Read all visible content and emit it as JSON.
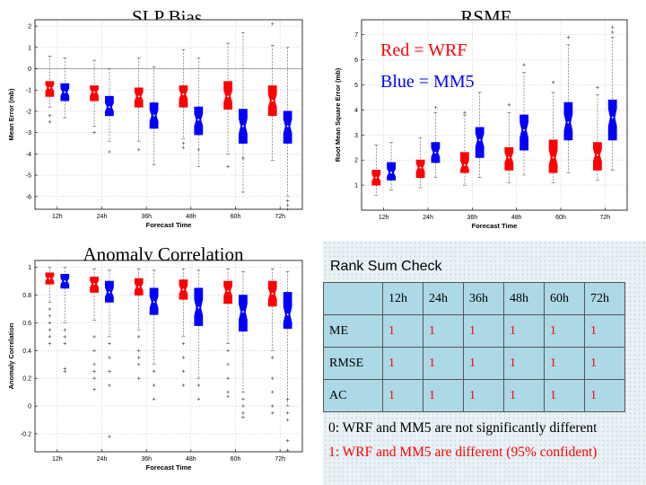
{
  "colors": {
    "wrf": "#ff0000",
    "mm5": "#0000ff",
    "median_dot": "#ffffff"
  },
  "legend": {
    "wrf": "Red = WRF",
    "mm5": "Blue = MM5"
  },
  "chart_data": [
    {
      "type": "box",
      "title": "SLP Bias",
      "xlabel": "Forecast Time",
      "ylabel": "Mean Error (mb)",
      "ylim": [
        -6.6,
        2.3
      ],
      "yticks": [
        2,
        1,
        0,
        -1,
        -2,
        -3,
        -4,
        -5,
        -6
      ],
      "zero_line": true,
      "grid": "dashed",
      "categories": [
        "12h",
        "24h",
        "36h",
        "48h",
        "60h",
        "72h"
      ],
      "series": [
        {
          "name": "WRF",
          "boxes": [
            {
              "min": -1.8,
              "q1": -1.3,
              "median": -0.9,
              "q3": -0.6,
              "max": 0.6,
              "outliers": [
                -2.2,
                -2.5
              ]
            },
            {
              "min": -2.7,
              "q1": -1.5,
              "median": -1.1,
              "q3": -0.8,
              "max": 0.4,
              "outliers": [
                -3.0
              ]
            },
            {
              "min": -3.4,
              "q1": -1.8,
              "median": -1.3,
              "q3": -0.9,
              "max": 0.5,
              "outliers": [
                -3.8
              ]
            },
            {
              "min": -3.3,
              "q1": -1.8,
              "median": -1.2,
              "q3": -0.8,
              "max": 0.9,
              "outliers": [
                -3.5,
                -3.7
              ]
            },
            {
              "min": -4.0,
              "q1": -1.9,
              "median": -1.3,
              "q3": -0.6,
              "max": 1.2,
              "outliers": [
                -4.6
              ]
            },
            {
              "min": -4.3,
              "q1": -2.2,
              "median": -1.5,
              "q3": -0.8,
              "max": 1.1,
              "outliers": [
                2.1
              ]
            }
          ]
        },
        {
          "name": "MM5",
          "boxes": [
            {
              "min": -2.3,
              "q1": -1.5,
              "median": -1.1,
              "q3": -0.7,
              "max": 0.5,
              "outliers": []
            },
            {
              "min": -3.4,
              "q1": -2.2,
              "median": -1.8,
              "q3": -1.3,
              "max": 0.0,
              "outliers": [
                -3.9
              ]
            },
            {
              "min": -4.5,
              "q1": -2.8,
              "median": -2.2,
              "q3": -1.6,
              "max": 0.1,
              "outliers": []
            },
            {
              "min": -4.6,
              "q1": -3.1,
              "median": -2.4,
              "q3": -1.8,
              "max": 0.5,
              "outliers": [
                -3.8
              ]
            },
            {
              "min": -5.8,
              "q1": -3.5,
              "median": -2.7,
              "q3": -1.9,
              "max": 1.7,
              "outliers": [
                -4.2
              ]
            },
            {
              "min": -6.0,
              "q1": -3.5,
              "median": -2.7,
              "q3": -2.0,
              "max": 1.0,
              "outliers": [
                -6.2,
                -6.4,
                -6.6
              ]
            }
          ]
        }
      ]
    },
    {
      "type": "box",
      "title": "RSME",
      "xlabel": "Forecast Time",
      "ylabel": "Root Mean Square Error (mb)",
      "ylim": [
        0,
        7.6
      ],
      "yticks": [
        7,
        6,
        5,
        4,
        3,
        2,
        1
      ],
      "grid": "dashed",
      "categories": [
        "12h",
        "24h",
        "36h",
        "48h",
        "60h",
        "72h"
      ],
      "series": [
        {
          "name": "WRF",
          "boxes": [
            {
              "min": 0.6,
              "q1": 1.0,
              "median": 1.3,
              "q3": 1.6,
              "max": 2.6,
              "outliers": []
            },
            {
              "min": 0.9,
              "q1": 1.3,
              "median": 1.7,
              "q3": 2.0,
              "max": 2.9,
              "outliers": []
            },
            {
              "min": 1.0,
              "q1": 1.5,
              "median": 1.8,
              "q3": 2.3,
              "max": 3.8,
              "outliers": [
                3.9
              ]
            },
            {
              "min": 1.1,
              "q1": 1.6,
              "median": 2.1,
              "q3": 2.5,
              "max": 3.9,
              "outliers": [
                4.2
              ]
            },
            {
              "min": 1.1,
              "q1": 1.5,
              "median": 2.1,
              "q3": 2.8,
              "max": 4.7,
              "outliers": [
                5.1
              ]
            },
            {
              "min": 1.2,
              "q1": 1.6,
              "median": 2.2,
              "q3": 2.7,
              "max": 4.6,
              "outliers": [
                4.9
              ]
            }
          ]
        },
        {
          "name": "MM5",
          "boxes": [
            {
              "min": 0.8,
              "q1": 1.2,
              "median": 1.5,
              "q3": 1.9,
              "max": 2.7,
              "outliers": []
            },
            {
              "min": 1.3,
              "q1": 1.9,
              "median": 2.3,
              "q3": 2.7,
              "max": 3.9,
              "outliers": [
                4.1
              ]
            },
            {
              "min": 1.3,
              "q1": 2.1,
              "median": 2.8,
              "q3": 3.3,
              "max": 4.7,
              "outliers": []
            },
            {
              "min": 1.4,
              "q1": 2.4,
              "median": 3.2,
              "q3": 3.8,
              "max": 5.5,
              "outliers": [
                5.8
              ]
            },
            {
              "min": 1.5,
              "q1": 2.8,
              "median": 3.5,
              "q3": 4.3,
              "max": 6.6,
              "outliers": [
                6.9
              ]
            },
            {
              "min": 1.6,
              "q1": 2.8,
              "median": 3.7,
              "q3": 4.4,
              "max": 6.9,
              "outliers": [
                7.1,
                7.3
              ]
            }
          ]
        }
      ]
    },
    {
      "type": "box",
      "title": "Anomaly Correlation",
      "xlabel": "Forecast Time",
      "ylabel": "Anomaly Correlation",
      "ylim": [
        -0.33,
        1.05
      ],
      "yticks": [
        1,
        0.8,
        0.6,
        0.4,
        0.2,
        0,
        -0.2
      ],
      "grid": "dashed",
      "categories": [
        "12h",
        "24h",
        "36h",
        "48h",
        "60h",
        "72h"
      ],
      "series": [
        {
          "name": "WRF",
          "boxes": [
            {
              "min": 0.75,
              "q1": 0.88,
              "median": 0.92,
              "q3": 0.96,
              "max": 1.0,
              "outliers": [
                0.7,
                0.65,
                0.6,
                0.55,
                0.5,
                0.45
              ]
            },
            {
              "min": 0.62,
              "q1": 0.82,
              "median": 0.88,
              "q3": 0.93,
              "max": 0.99,
              "outliers": [
                0.5,
                0.4,
                0.3,
                0.25,
                0.2,
                0.12
              ]
            },
            {
              "min": 0.55,
              "q1": 0.8,
              "median": 0.86,
              "q3": 0.92,
              "max": 0.99,
              "outliers": [
                0.5,
                0.4,
                0.35,
                0.3,
                0.2
              ]
            },
            {
              "min": 0.5,
              "q1": 0.77,
              "median": 0.84,
              "q3": 0.91,
              "max": 0.99,
              "outliers": [
                0.45,
                0.35,
                0.25,
                0.15
              ]
            },
            {
              "min": 0.45,
              "q1": 0.74,
              "median": 0.83,
              "q3": 0.9,
              "max": 0.99,
              "outliers": [
                0.4,
                0.3,
                0.2,
                0.1,
                0.07
              ]
            },
            {
              "min": 0.4,
              "q1": 0.72,
              "median": 0.81,
              "q3": 0.9,
              "max": 0.99,
              "outliers": [
                0.35,
                0.2,
                0.1,
                0.0,
                -0.05
              ]
            }
          ]
        },
        {
          "name": "MM5",
          "boxes": [
            {
              "min": 0.6,
              "q1": 0.85,
              "median": 0.9,
              "q3": 0.95,
              "max": 1.0,
              "outliers": [
                0.55,
                0.5,
                0.45,
                0.27,
                0.25
              ]
            },
            {
              "min": 0.5,
              "q1": 0.75,
              "median": 0.82,
              "q3": 0.9,
              "max": 0.98,
              "outliers": [
                0.45,
                0.35,
                0.25,
                0.15,
                -0.22
              ]
            },
            {
              "min": 0.3,
              "q1": 0.66,
              "median": 0.75,
              "q3": 0.85,
              "max": 0.98,
              "outliers": [
                0.25,
                0.15,
                0.05
              ]
            },
            {
              "min": 0.2,
              "q1": 0.58,
              "median": 0.71,
              "q3": 0.85,
              "max": 0.98,
              "outliers": [
                0.15,
                0.05
              ]
            },
            {
              "min": 0.1,
              "q1": 0.54,
              "median": 0.68,
              "q3": 0.8,
              "max": 0.97,
              "outliers": [
                0.05,
                0.0,
                -0.05,
                -0.08
              ]
            },
            {
              "min": 0.0,
              "q1": 0.56,
              "median": 0.66,
              "q3": 0.82,
              "max": 0.97,
              "outliers": [
                0.05,
                -0.05,
                -0.1,
                -0.25,
                -0.32
              ]
            }
          ]
        }
      ]
    }
  ],
  "rank_sum": {
    "title": "Rank Sum Check",
    "columns": [
      "",
      "12h",
      "24h",
      "36h",
      "48h",
      "60h",
      "72h"
    ],
    "rows": [
      {
        "label": "ME",
        "values": [
          "1",
          "1",
          "1",
          "1",
          "1",
          "1"
        ]
      },
      {
        "label": "RMSE",
        "values": [
          "1",
          "1",
          "1",
          "1",
          "1",
          "1"
        ]
      },
      {
        "label": "AC",
        "values": [
          "1",
          "1",
          "1",
          "1",
          "1",
          "1"
        ]
      }
    ],
    "note_0": "0: WRF and MM5 are not significantly different",
    "note_1": "1: WRF and MM5 are different (95% confident)"
  }
}
